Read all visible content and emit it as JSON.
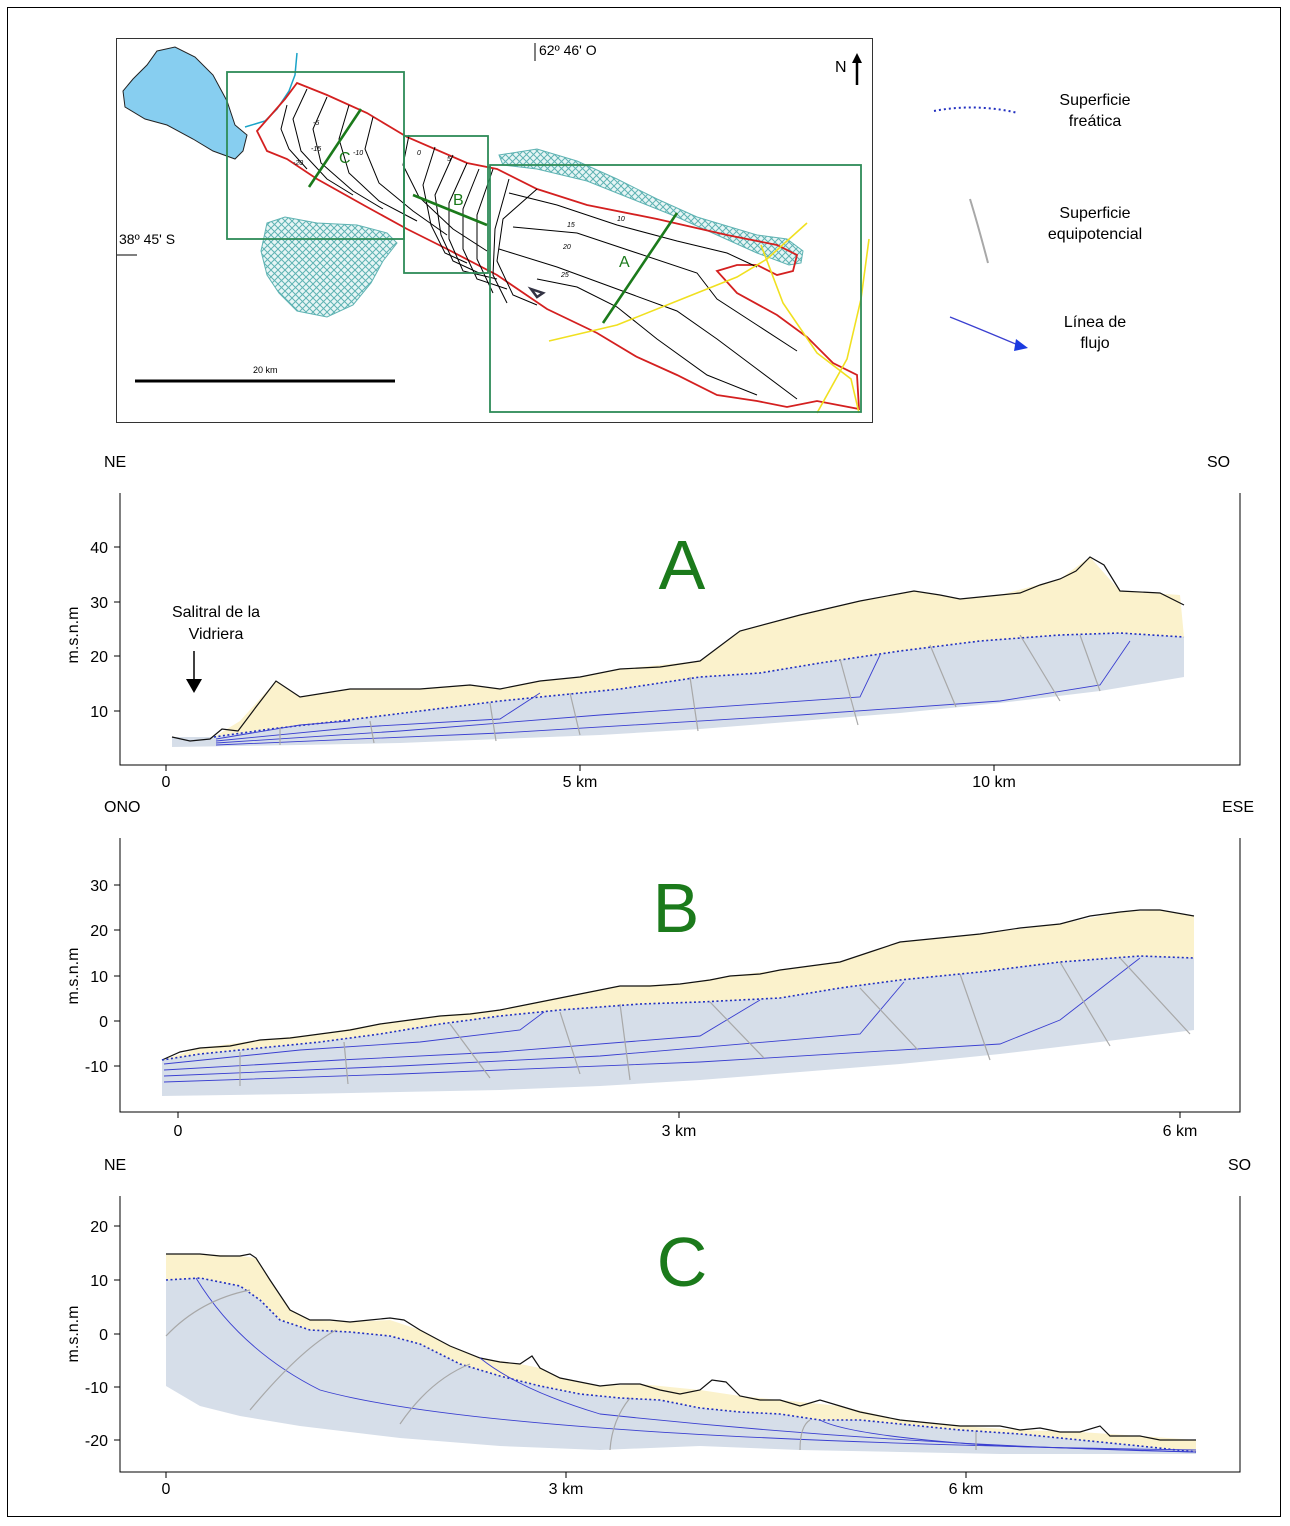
{
  "map": {
    "longitude_label": "62º 46' O",
    "latitude_label": "38º 45' S",
    "north_label": "N",
    "scale_label": "20 km",
    "section_labels": [
      "A",
      "B",
      "C"
    ],
    "contour_labels": [
      "-5",
      "-10",
      "-15",
      "-20",
      "0",
      "5",
      "10",
      "15",
      "20",
      "25"
    ],
    "colors": {
      "outline": "#d42020",
      "box": "#2e8b57",
      "lake": "#87cef0",
      "roads": "#f0e020",
      "hatch": "#5fb3b3",
      "contour": "#000000"
    }
  },
  "legend": {
    "items": [
      {
        "icon": "dotted-line-icon",
        "label_lines": [
          "Superficie",
          "freática"
        ]
      },
      {
        "icon": "gray-curve-icon",
        "label_lines": [
          "Superficie",
          "equipotencial"
        ]
      },
      {
        "icon": "flow-arrow-icon",
        "label_lines": [
          "Línea de",
          "flujo"
        ]
      }
    ]
  },
  "sections": [
    {
      "id": "A",
      "title": "A",
      "left_label": "NE",
      "right_label": "SO",
      "ylabel": "m.s.n.m",
      "yticks": [
        "10",
        "20",
        "30",
        "40"
      ],
      "xticks": [
        "0",
        "5 km",
        "10 km"
      ],
      "annotation_lines": [
        "Salitral de la",
        "Vidriera"
      ]
    },
    {
      "id": "B",
      "title": "B",
      "left_label": "ONO",
      "right_label": "ESE",
      "ylabel": "m.s.n.m",
      "yticks": [
        "-10",
        "0",
        "10",
        "20",
        "30"
      ],
      "xticks": [
        "0",
        "3 km",
        "6 km"
      ]
    },
    {
      "id": "C",
      "title": "C",
      "left_label": "NE",
      "right_label": "SO",
      "ylabel": "m.s.n.m",
      "yticks": [
        "-20",
        "-10",
        "0",
        "10",
        "20"
      ],
      "xticks": [
        "0",
        "3 km",
        "6 km"
      ]
    }
  ],
  "section_colors": {
    "unsaturated": "#fbf2cc",
    "saturated": "#d6dee9",
    "flow": "#3a3fd0",
    "equipotential": "#a8a8a8",
    "water_table": "#2230c0",
    "title": "#1b7a1b"
  }
}
